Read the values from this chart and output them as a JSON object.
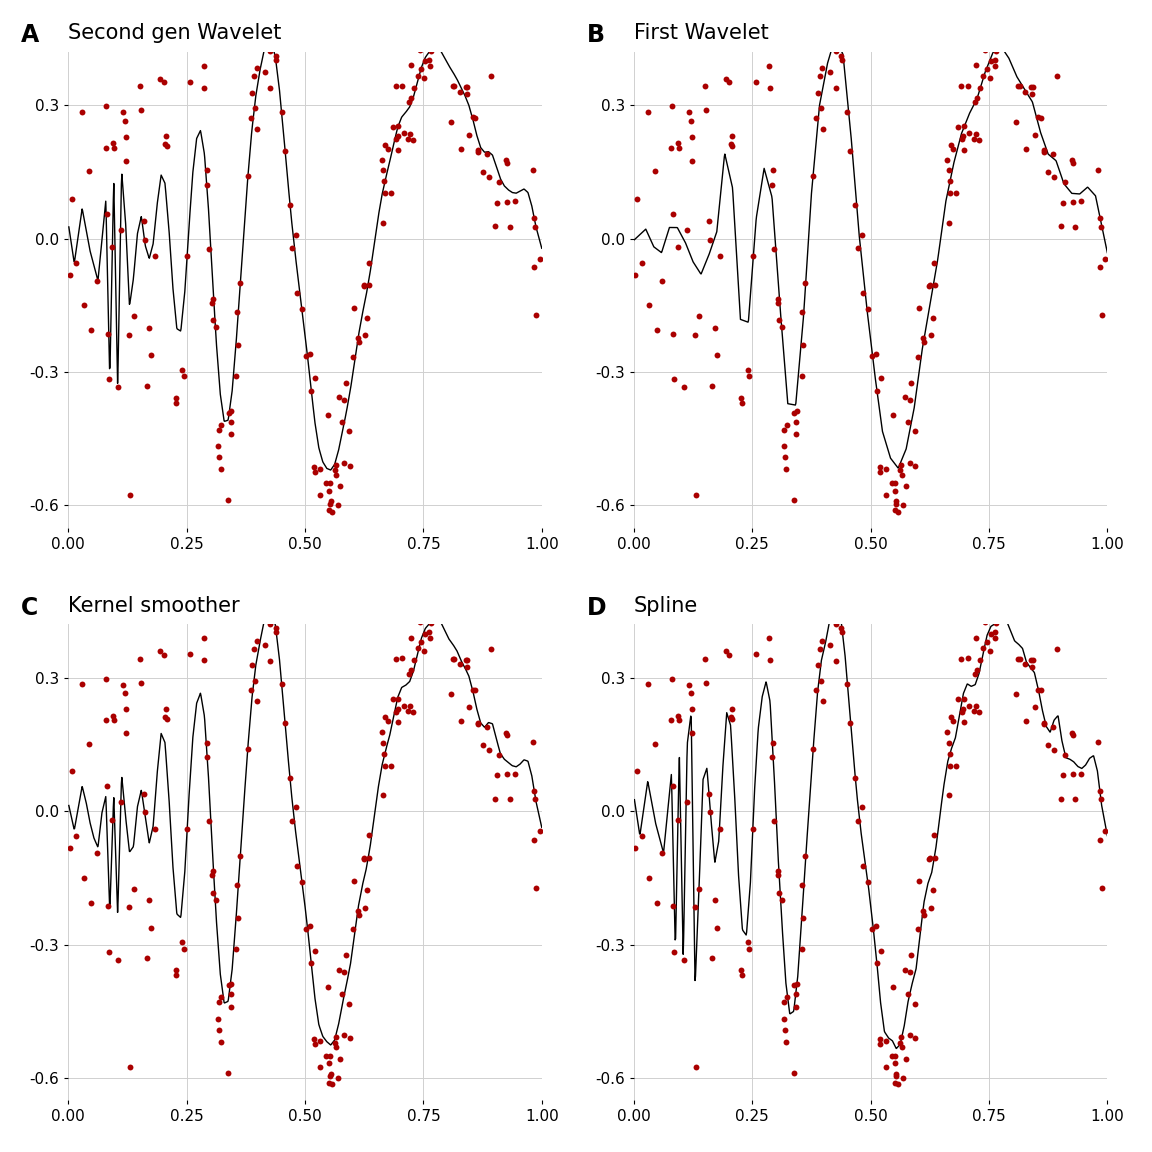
{
  "titles": [
    "Second gen Wavelet",
    "First Wavelet",
    "Kernel smoother",
    "Spline"
  ],
  "panel_labels": [
    "A",
    "B",
    "C",
    "D"
  ],
  "background_color": "#ffffff",
  "grid_color": "#d0d0d0",
  "dot_color": "#AA0000",
  "line_color": "#000000",
  "xlim": [
    0.0,
    1.0
  ],
  "ylim": [
    -0.65,
    0.42
  ],
  "xticks": [
    0.0,
    0.25,
    0.5,
    0.75,
    1.0
  ],
  "yticks": [
    -0.6,
    -0.3,
    0.0,
    0.3
  ],
  "dot_size": 18,
  "line_width": 1.0,
  "title_fontsize": 15,
  "label_fontsize": 11,
  "panel_label_fontsize": 17
}
